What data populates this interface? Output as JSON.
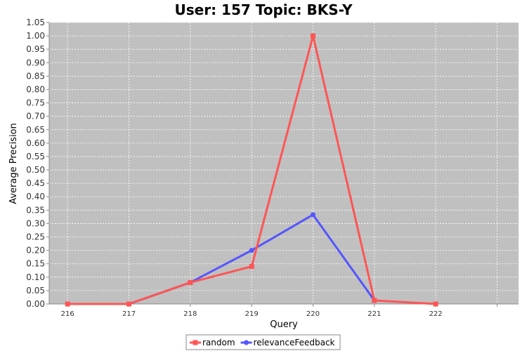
{
  "chart_data": {
    "type": "line",
    "title": "User: 157 Topic: BKS-Y",
    "xlabel": "Query",
    "ylabel": "Average Precision",
    "x": [
      216,
      217,
      218,
      219,
      220,
      221,
      222
    ],
    "x_ticks": [
      "216",
      "217",
      "218",
      "219",
      "220",
      "221",
      "222"
    ],
    "xlim": [
      215.7,
      223.35
    ],
    "ylim": [
      0,
      1.05
    ],
    "y_tick_step": 0.05,
    "grid": true,
    "legend_position": "bottom-center",
    "plot_background": "#c0c0c0",
    "series": [
      {
        "name": "random",
        "color": "#ff5555",
        "marker": "square",
        "x": [
          216,
          217,
          218,
          219,
          220,
          221,
          222
        ],
        "values": [
          0.0,
          0.0,
          0.08,
          0.14,
          1.0,
          0.013,
          0.0
        ]
      },
      {
        "name": "relevanceFeedback",
        "color": "#5555ff",
        "marker": "circle",
        "x": [
          217,
          218,
          219,
          220,
          221
        ],
        "values": [
          0.0,
          0.08,
          0.2,
          0.333,
          0.013
        ]
      }
    ]
  }
}
